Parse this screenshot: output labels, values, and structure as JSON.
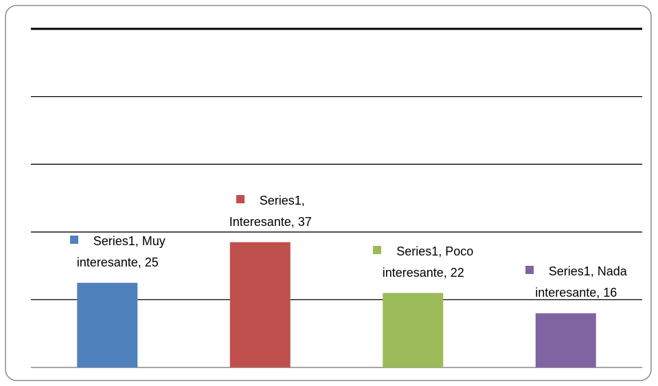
{
  "chart_data": {
    "type": "bar",
    "series": [
      {
        "name": "Series1",
        "colors": [
          "#4f81bd",
          "#c0504d",
          "#9bbb59",
          "#8064a2"
        ],
        "values": [
          25,
          37,
          22,
          16
        ],
        "value_labels": [
          "Series1, Muy interesante, 25",
          "Series1, Interesante, 37",
          "Series1, Poco interesante, 22",
          "Series1, Nada interesante, 16"
        ]
      }
    ],
    "ylim": [
      0,
      100
    ],
    "yticks": [
      0,
      20,
      40,
      60,
      80,
      100
    ],
    "grid": true
  }
}
